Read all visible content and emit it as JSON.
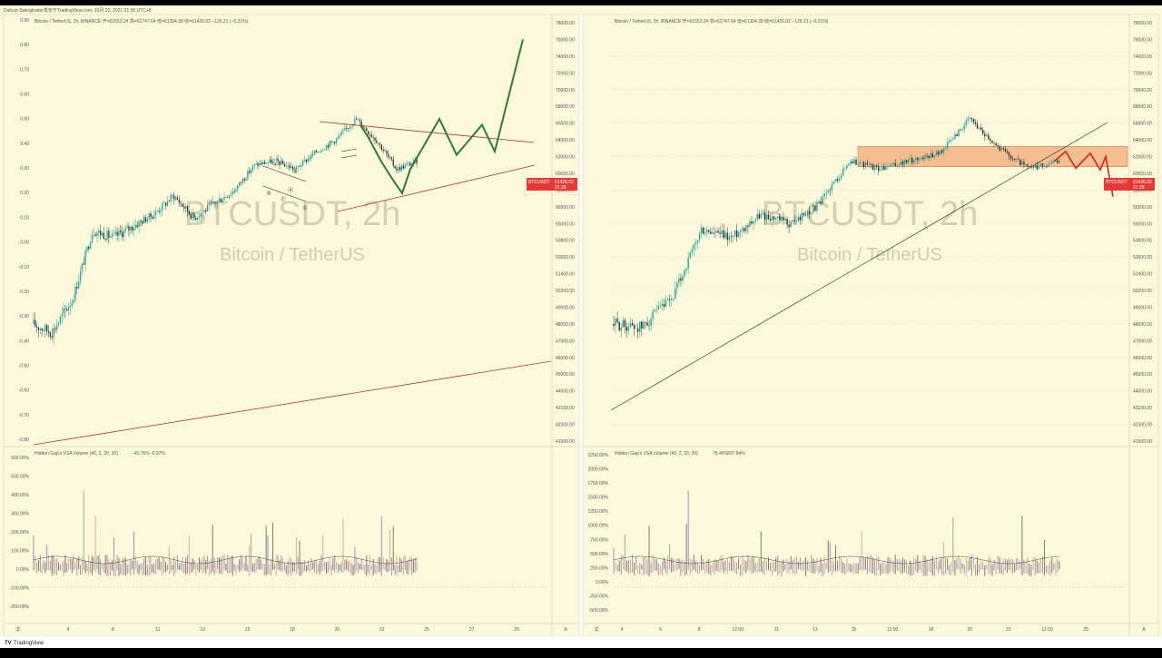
{
  "header": {
    "credit": "Dahuzi-Swingtrader发布于TradingView.com,  10月 22, 2021 21:38 UTC+8"
  },
  "footer": {
    "brand": "TradingView"
  },
  "colors": {
    "panel_bg": "#fcf8dc",
    "candle_up": "#26a69a",
    "candle_down": "#333333",
    "projection_green": "#2e7d32",
    "projection_red": "#c62828",
    "trend_line": "#a33a3a",
    "zone_fill": "#f5b483",
    "price_tag": "#e53935"
  },
  "left_chart": {
    "legend": "Bitcoin / TetherUS, 2h, BINANCE  开=61552.24  高=61747.64  低=61304.28  收=61426.02  −126.21 (−0.21%)",
    "watermark_symbol": "BTCUSDT, 2h",
    "watermark_name": "Bitcoin / TetherUS",
    "price_tag_symbol": "BTCUSDT",
    "price_tag_value": "61426.02",
    "price_tag_time": "21:28",
    "wave_labels": [
      "④",
      "⑤",
      "Ⓑ",
      "Ⓐ",
      "Ⓒ",
      "①"
    ],
    "indicator_legend": "Hidden Gap's VSA Volume (40, 2, 20, 20)",
    "indicator_value_1": "-45.76%",
    "indicator_value_2": "-6.97%",
    "time_axis_corner": "Z",
    "time_axis_corner_right": "A"
  },
  "right_chart": {
    "legend": "Bitcoin / TetherUS, 2h, BINANCE  开=61552.24  高=61747.64  低=61304.28  收=61426.02  −126.21 (−0.21%)",
    "watermark_symbol": "BTCUSDT, 2h",
    "watermark_name": "Bitcoin / TetherUS",
    "price_tag_symbol": "BTCUSDT",
    "price_tag_value": "61426.02",
    "price_tag_time": "21:28",
    "indicator_legend": "Hidden Gap's VSA Volume (40, 2, 20, 20)",
    "indicator_value_1": "79.46%",
    "indicator_value_2": "207.84%",
    "time_axis_corner": "Z",
    "time_axis_corner_right": "A"
  },
  "chart_data": [
    {
      "type": "candlestick",
      "panel": "left",
      "legend": "Bitcoin / TetherUS, 2h, BINANCE",
      "timeframe": "2h",
      "left_axis_ticks": [
        "0.90",
        "0.80",
        "0.70",
        "0.60",
        "0.50",
        "0.40",
        "0.30",
        "0.20",
        "0.10",
        "0.00",
        "-0.10",
        "-0.20",
        "-0.30",
        "-0.40",
        "-0.50",
        "-0.60",
        "-0.70",
        "-0.80"
      ],
      "right_axis_ticks": [
        "78000.00",
        "76000.00",
        "74000.00",
        "72000.00",
        "70000.00",
        "68000.00",
        "66000.00",
        "64000.00",
        "62000.00",
        "60000.00",
        "58000.00",
        "56500.00",
        "55000.00",
        "53800.00",
        "52600.00",
        "51400.00",
        "50200.00",
        "49000.00",
        "48000.00",
        "47000.00",
        "46000.00",
        "45000.00",
        "44000.00",
        "43100.00",
        "42300.00",
        "41500.00"
      ],
      "x_ticks": [
        "4",
        "8",
        "11",
        "13",
        "15",
        "18",
        "20",
        "22",
        "25",
        "27",
        "29"
      ],
      "indicator_ticks": [
        "600.00%",
        "500.00%",
        "400.00%",
        "300.00%",
        "200.00%",
        "100.00%",
        "0.00%",
        "-100.00%",
        "-200.00%"
      ],
      "price_path": [
        {
          "x": "start",
          "close": 48000
        },
        {
          "x": "4",
          "close": 47500
        },
        {
          "x": "6",
          "close": 49500
        },
        {
          "x": "7",
          "close": 54500
        },
        {
          "x": "8",
          "close": 54000
        },
        {
          "x": "9",
          "close": 54800
        },
        {
          "x": "11",
          "close": 55800
        },
        {
          "x": "12",
          "close": 57500
        },
        {
          "x": "13",
          "close": 55500
        },
        {
          "x": "14",
          "close": 56800
        },
        {
          "x": "15",
          "close": 58000
        },
        {
          "x": "16",
          "close": 61000
        },
        {
          "x": "17",
          "close": 61500
        },
        {
          "x": "18",
          "close": 60500
        },
        {
          "x": "19",
          "close": 62500
        },
        {
          "x": "19.5",
          "close": 64000
        },
        {
          "x": "20",
          "close": 66500
        },
        {
          "x": "21",
          "close": 64000
        },
        {
          "x": "22",
          "close": 60500
        },
        {
          "x": "22.5",
          "close": 61426
        }
      ],
      "projection": [
        61426,
        66500,
        62200,
        65800,
        62600,
        76000
      ],
      "price_tag": 61426.02
    },
    {
      "type": "candlestick",
      "panel": "right",
      "legend": "Bitcoin / TetherUS, 2h, BINANCE",
      "timeframe": "2h",
      "right_axis_ticks": [
        "78000.00",
        "76000.00",
        "74000.00",
        "72000.00",
        "70000.00",
        "68000.00",
        "66000.00",
        "64000.00",
        "62000.00",
        "60000.00",
        "58000.00",
        "56500.00",
        "55000.00",
        "53800.00",
        "52600.00",
        "51400.00",
        "50200.00",
        "49000.00",
        "48000.00",
        "47000.00",
        "46000.00",
        "45000.00",
        "44000.00",
        "43100.00",
        "42300.00",
        "41500.00"
      ],
      "x_ticks": [
        "4",
        "6",
        "8",
        "12:00",
        "11",
        "13",
        "15",
        "12:00",
        "18",
        "20",
        "22",
        "12:00",
        "25"
      ],
      "indicator_ticks": [
        "2250.00%",
        "2000.00%",
        "1750.00%",
        "1500.00%",
        "1250.00%",
        "1000.00%",
        "750.00%",
        "500.00%",
        "250.00%",
        "0.00%",
        "-250.00%",
        "-500.00%"
      ],
      "price_path": [
        {
          "x": "start",
          "close": 48000
        },
        {
          "x": "4",
          "close": 47800
        },
        {
          "x": "6",
          "close": 49500
        },
        {
          "x": "7",
          "close": 54500
        },
        {
          "x": "8",
          "close": 54000
        },
        {
          "x": "11",
          "close": 55800
        },
        {
          "x": "13",
          "close": 55000
        },
        {
          "x": "14",
          "close": 56800
        },
        {
          "x": "15",
          "close": 61500
        },
        {
          "x": "16",
          "close": 60500
        },
        {
          "x": "18",
          "close": 61500
        },
        {
          "x": "19",
          "close": 62500
        },
        {
          "x": "20",
          "close": 66500
        },
        {
          "x": "21",
          "close": 63000
        },
        {
          "x": "22",
          "close": 60500
        },
        {
          "x": "22.5",
          "close": 61426
        }
      ],
      "zone": [
        60800,
        63200
      ],
      "projection": [
        61426,
        62600,
        60600,
        62400,
        60400,
        62000,
        57400
      ],
      "price_tag": 61426.02
    }
  ]
}
